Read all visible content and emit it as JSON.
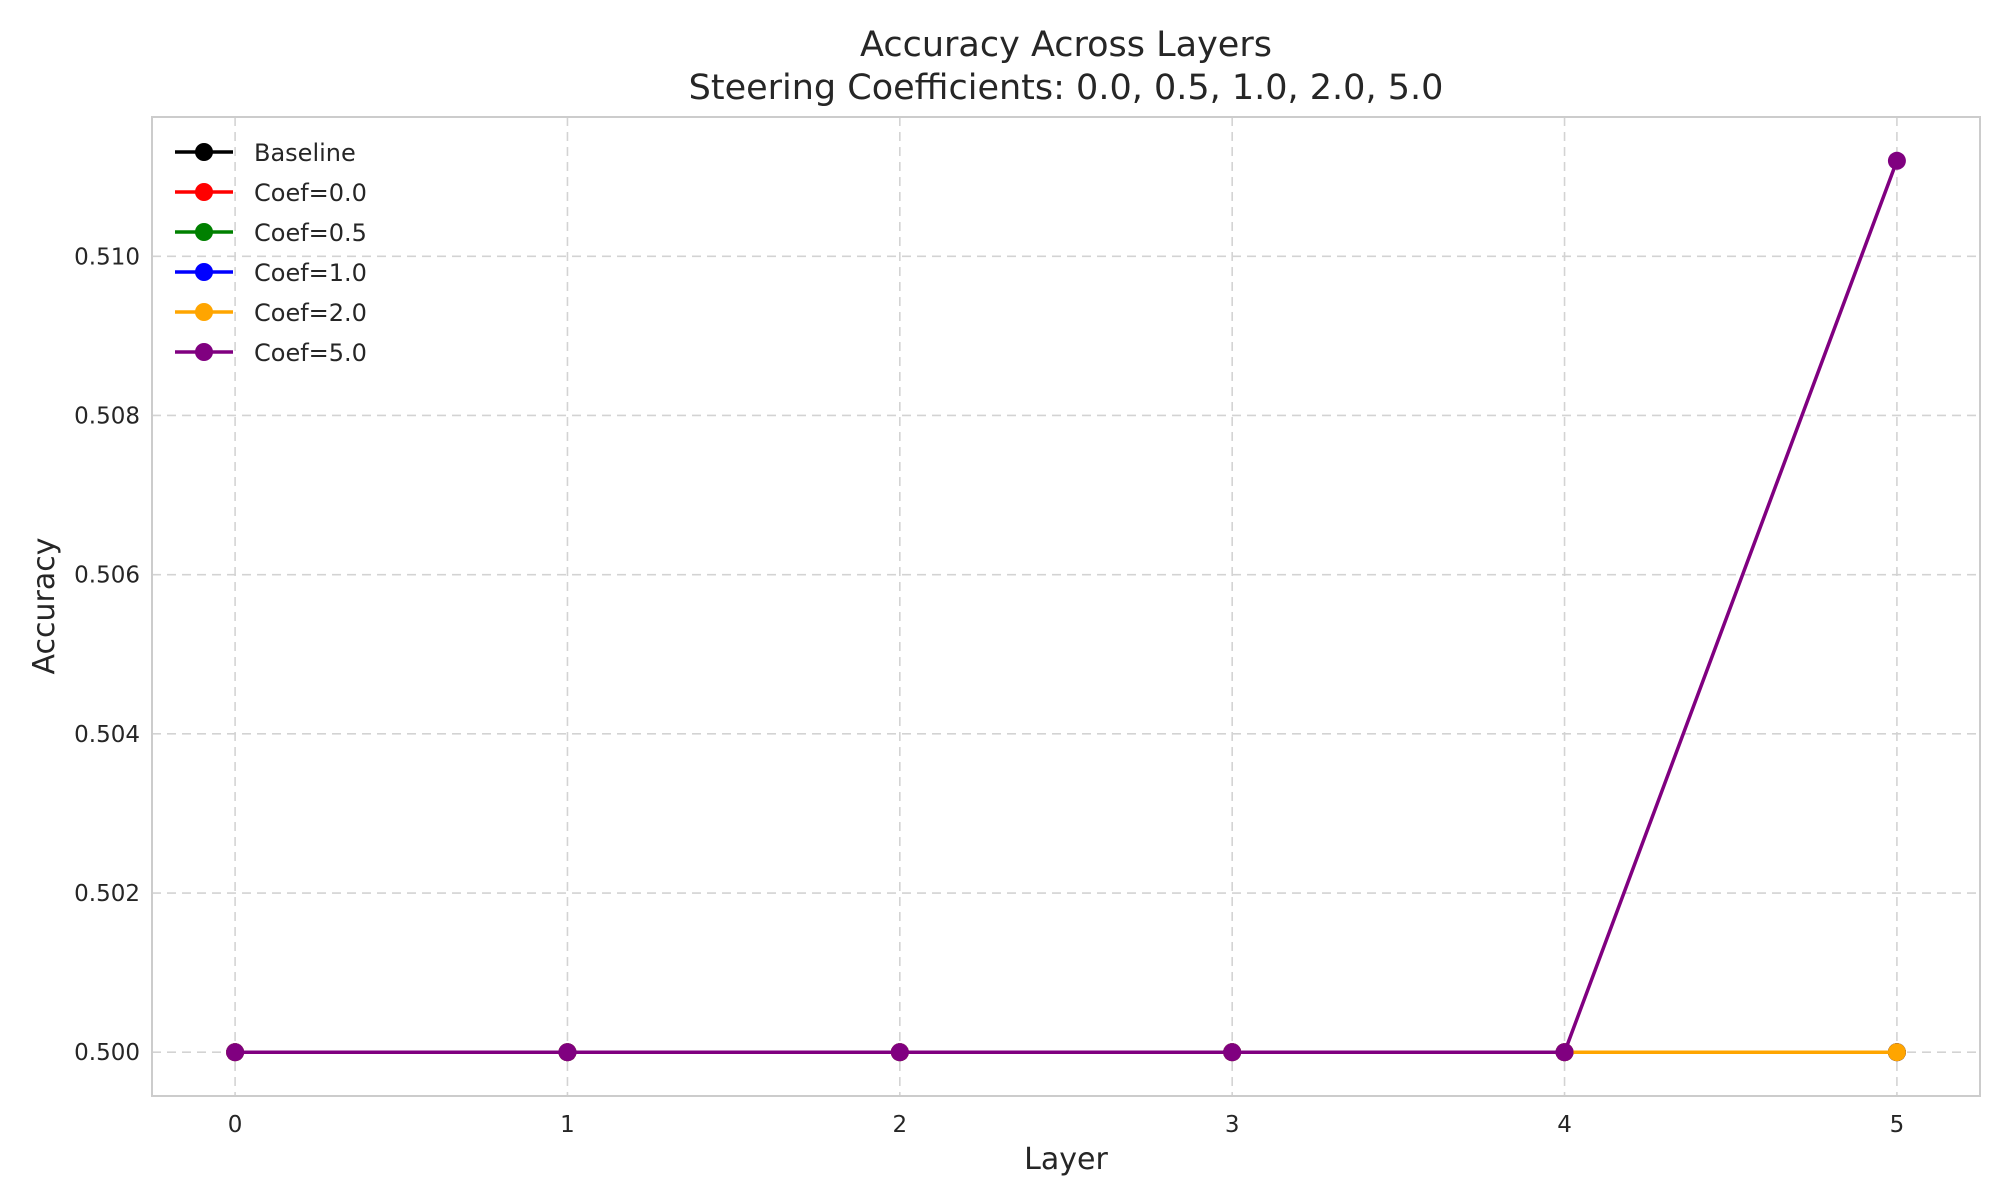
{
  "chart_data": {
    "type": "line",
    "title": "Accuracy Across Layers",
    "subtitle": "Steering Coefficients: 0.0, 0.5, 1.0, 2.0, 5.0",
    "xlabel": "Layer",
    "ylabel": "Accuracy",
    "x": [
      0,
      1,
      2,
      3,
      4,
      5
    ],
    "x_ticks": [
      "0",
      "1",
      "2",
      "3",
      "4",
      "5"
    ],
    "y_ticks": [
      "0.500",
      "0.502",
      "0.504",
      "0.506",
      "0.508",
      "0.510"
    ],
    "xlim": [
      -0.25,
      5.25
    ],
    "ylim": [
      0.49945,
      0.51175
    ],
    "grid": true,
    "legend_position": "top-left",
    "series": [
      {
        "name": "Baseline",
        "color": "#000000",
        "values": [
          0.5,
          0.5,
          0.5,
          0.5,
          0.5,
          0.5
        ]
      },
      {
        "name": "Coef=0.0",
        "color": "#ff0000",
        "values": [
          0.5,
          0.5,
          0.5,
          0.5,
          0.5,
          0.5
        ]
      },
      {
        "name": "Coef=0.5",
        "color": "#008000",
        "values": [
          0.5,
          0.5,
          0.5,
          0.5,
          0.5,
          0.5
        ]
      },
      {
        "name": "Coef=1.0",
        "color": "#0000ff",
        "values": [
          0.5,
          0.5,
          0.5,
          0.5,
          0.5,
          0.5
        ]
      },
      {
        "name": "Coef=2.0",
        "color": "#ffa500",
        "values": [
          0.5,
          0.5,
          0.5,
          0.5,
          0.5,
          0.5
        ]
      },
      {
        "name": "Coef=5.0",
        "color": "#800080",
        "values": [
          0.5,
          0.5,
          0.5,
          0.5,
          0.5,
          0.5112
        ]
      }
    ]
  }
}
